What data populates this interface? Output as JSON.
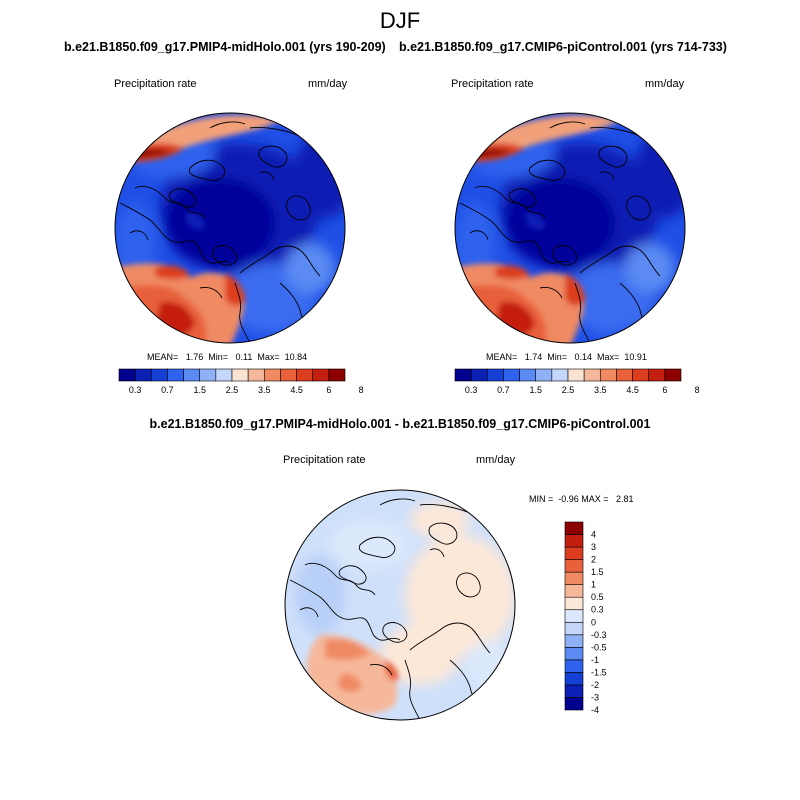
{
  "title": "DJF",
  "colors": {
    "top_scale": [
      "#00008f",
      "#0a1fb3",
      "#143fd4",
      "#2f62ee",
      "#5a8af2",
      "#8fb2f6",
      "#c4d6fa",
      "#fbe3d2",
      "#f6b89b",
      "#ef8a63",
      "#e8613a",
      "#dc3d1e",
      "#c41e0e",
      "#8c0000"
    ],
    "diff_scale": [
      "#00008f",
      "#0a1fb3",
      "#143fd4",
      "#2f62ee",
      "#5a8af2",
      "#8fb2f6",
      "#c4d6fa",
      "#dce8fb",
      "#fde8d8",
      "#f6b89b",
      "#ef8a63",
      "#e8613a",
      "#dc3d1e",
      "#c41e0e",
      "#8c0000"
    ]
  },
  "panels": [
    {
      "title": "b.e21.B1850.f09_g17.PMIP4-midHolo.001 (yrs 190-209)",
      "variable": "Precipitation rate",
      "units": "mm/day",
      "stats": "MEAN=   1.76  Min=   0.11  Max=  10.84",
      "colorbar_labels": [
        "0.3",
        "0.7",
        "1.5",
        "2.5",
        "3.5",
        "4.5",
        "6",
        "8"
      ]
    },
    {
      "title": "b.e21.B1850.f09_g17.CMIP6-piControl.001 (yrs 714-733)",
      "variable": "Precipitation rate",
      "units": "mm/day",
      "stats": "MEAN=   1.74  Min=   0.14  Max=  10.91",
      "colorbar_labels": [
        "0.3",
        "0.7",
        "1.5",
        "2.5",
        "3.5",
        "4.5",
        "6",
        "8"
      ]
    }
  ],
  "difference": {
    "title": "b.e21.B1850.f09_g17.PMIP4-midHolo.001 - b.e21.B1850.f09_g17.CMIP6-piControl.001",
    "variable": "Precipitation rate",
    "units": "mm/day",
    "stats": "MIN =  -0.96 MAX =   2.81",
    "colorbar_labels": [
      "4",
      "3",
      "2",
      "1.5",
      "1",
      "0.5",
      "0.3",
      "0",
      "-0.3",
      "-0.5",
      "-1",
      "-1.5",
      "-2",
      "-3",
      "-4"
    ]
  }
}
